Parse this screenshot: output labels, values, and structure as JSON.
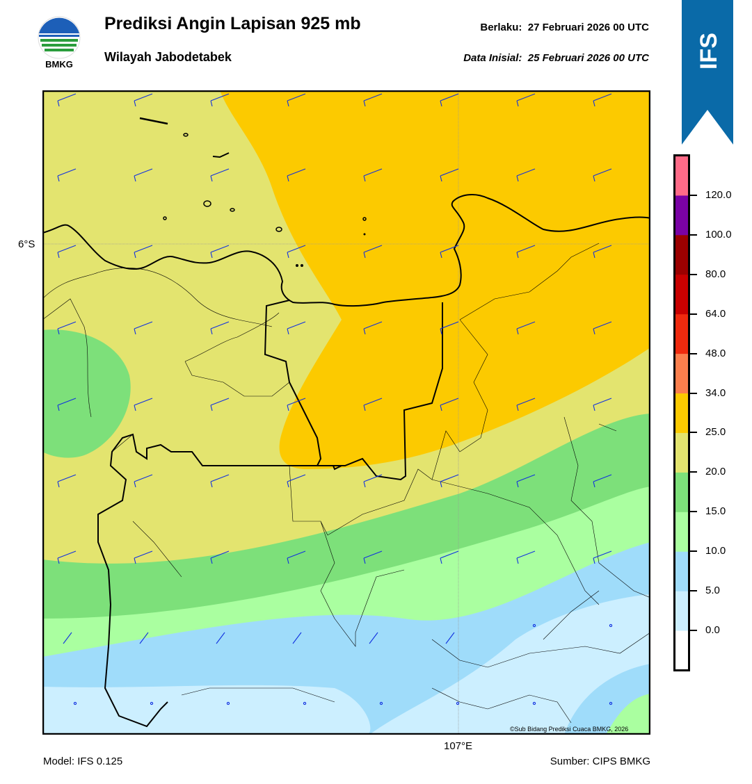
{
  "header": {
    "title": "Prediksi Angin Lapisan 925 mb",
    "subtitle": "Wilayah Jabodetabek",
    "valid_label": "Berlaku:",
    "valid_value": "27 Februari 2026 00 UTC",
    "init_label": "Data Inisial:",
    "init_value": "25 Februari 2026 00 UTC",
    "logo_text": "BMKG",
    "model_badge": "IFS"
  },
  "map": {
    "lat_label": "6°S",
    "lon_label": "107°E",
    "copyright": "©Sub Bidang Prediksi Cuaca BMKG, 2026",
    "wind_barb_color": "#1030e0",
    "coast_color": "#000000"
  },
  "colorbar": {
    "ticks": [
      "0.0",
      "5.0",
      "10.0",
      "15.0",
      "20.0",
      "25.0",
      "34.0",
      "48.0",
      "64.0",
      "80.0",
      "100.0",
      "120.0"
    ],
    "colors": [
      "#ffffff",
      "#ccefff",
      "#9fdcfa",
      "#aaffa0",
      "#7de07a",
      "#e3e46f",
      "#fcca00",
      "#fb7f4d",
      "#ef2a0e",
      "#c80000",
      "#9b0000",
      "#7a02a5",
      "#ff6b88"
    ]
  },
  "footer": {
    "model": "Model: IFS 0.125",
    "source": "Sumber: CIPS BMKG"
  }
}
